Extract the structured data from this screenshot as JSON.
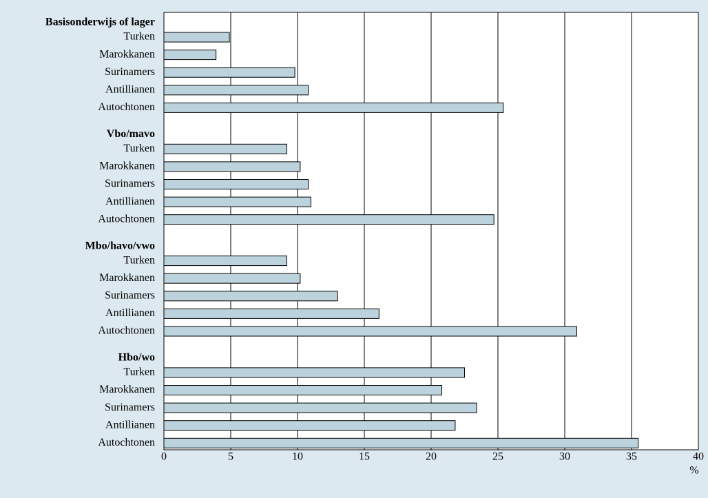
{
  "chart_data": {
    "type": "grouped-hbar",
    "groups": [
      {
        "name": "Basisonderwijs of lager",
        "categories": [
          "Turken",
          "Marokkanen",
          "Surinamers",
          "Antillianen",
          "Autochtonen"
        ],
        "values": [
          4.9,
          3.9,
          9.8,
          10.8,
          25.4
        ]
      },
      {
        "name": "Vbo/mavo",
        "categories": [
          "Turken",
          "Marokkanen",
          "Surinamers",
          "Antillianen",
          "Autochtonen"
        ],
        "values": [
          9.2,
          10.2,
          10.8,
          11.0,
          24.7
        ]
      },
      {
        "name": "Mbo/havo/vwo",
        "categories": [
          "Turken",
          "Marokkanen",
          "Surinamers",
          "Antillianen",
          "Autochtonen"
        ],
        "values": [
          9.2,
          10.2,
          13.0,
          16.1,
          30.9
        ]
      },
      {
        "name": "Hbo/wo",
        "categories": [
          "Turken",
          "Marokkanen",
          "Surinamers",
          "Antillianen",
          "Autochtonen"
        ],
        "values": [
          22.5,
          20.8,
          23.4,
          21.8,
          35.5
        ]
      }
    ],
    "color": "#bcd3de",
    "xlabel": "%",
    "xlim": [
      0,
      40
    ],
    "xticks": [
      0,
      5,
      10,
      15,
      20,
      25,
      30,
      35,
      40
    ],
    "grid": true
  }
}
